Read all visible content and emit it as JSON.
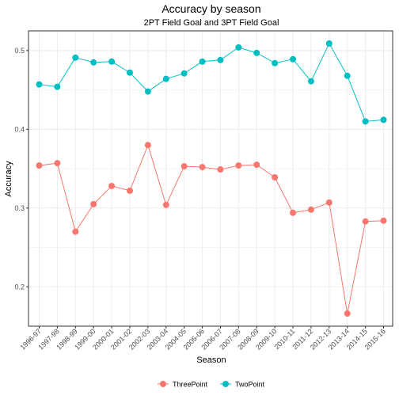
{
  "chart_data": {
    "type": "line",
    "title": "Accuracy by season",
    "subtitle": "2PT Field Goal and 3PT Field Goal",
    "xlabel": "Season",
    "ylabel": "Accuracy",
    "categories": [
      "1996-97",
      "1997-98",
      "1998-99",
      "1999-00",
      "2000-01",
      "2001-02",
      "2002-03",
      "2003-04",
      "2004-05",
      "2005-06",
      "2006-07",
      "2007-08",
      "2008-09",
      "2009-10",
      "2010-11",
      "2011-12",
      "2012-13",
      "2013-14",
      "2014-15",
      "2015-16"
    ],
    "ylim": [
      0.15,
      0.525
    ],
    "yticks": [
      0.2,
      0.3,
      0.4,
      0.5
    ],
    "ytick_labels": [
      "0.2",
      "0.3",
      "0.4",
      "0.5"
    ],
    "grid": true,
    "legend_position": "bottom",
    "series": [
      {
        "name": "ThreePoint",
        "color": "#F8766D",
        "values": [
          0.354,
          0.357,
          0.27,
          0.305,
          0.328,
          0.322,
          0.38,
          0.304,
          0.353,
          0.352,
          0.349,
          0.354,
          0.355,
          0.339,
          0.294,
          0.298,
          0.307,
          0.166,
          0.283,
          0.284
        ]
      },
      {
        "name": "TwoPoint",
        "color": "#00BFC4",
        "values": [
          0.457,
          0.454,
          0.491,
          0.485,
          0.486,
          0.472,
          0.448,
          0.464,
          0.471,
          0.486,
          0.488,
          0.504,
          0.497,
          0.484,
          0.489,
          0.461,
          0.509,
          0.468,
          0.41,
          0.412
        ]
      }
    ]
  }
}
